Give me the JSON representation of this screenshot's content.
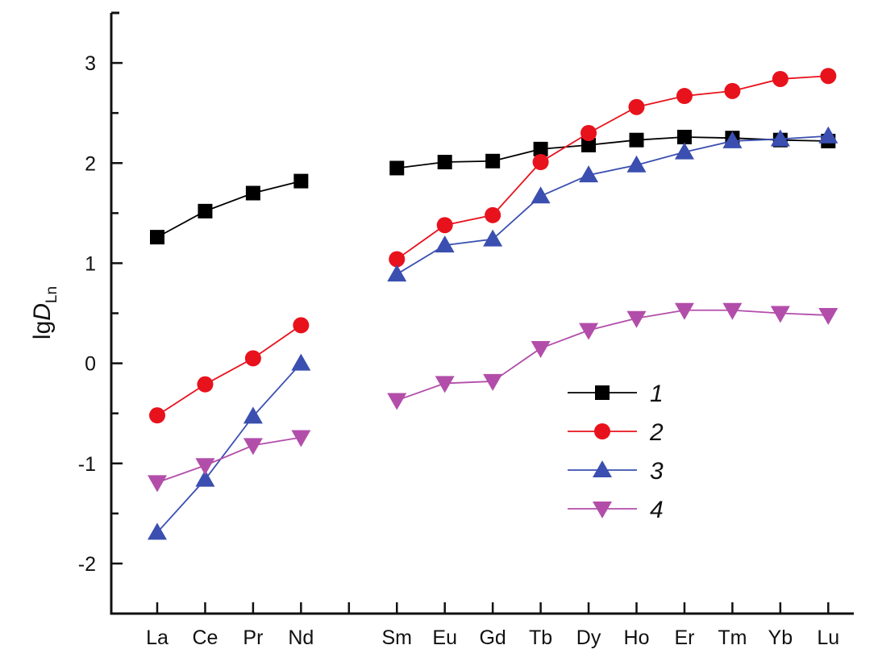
{
  "chart_data": {
    "type": "line",
    "title": "",
    "xlabel": "",
    "ylabel": {
      "prefix": "lg",
      "main": "D",
      "subscript": "Ln"
    },
    "categories": [
      "La",
      "Ce",
      "Pr",
      "Nd",
      "",
      "Sm",
      "Eu",
      "Gd",
      "Tb",
      "Dy",
      "Ho",
      "Er",
      "Tm",
      "Yb",
      "Lu"
    ],
    "ylim": [
      -2.5,
      3.5
    ],
    "yticks": [
      -2,
      -1,
      0,
      1,
      2,
      3
    ],
    "ytick_labels": [
      "-2",
      "-1",
      "0",
      "1",
      "2",
      "3"
    ],
    "y_minor_step": 0.5,
    "grid": false,
    "legend_position": "center-right",
    "series": [
      {
        "name": "1",
        "color": "#000000",
        "marker": "square",
        "values": [
          1.26,
          1.52,
          1.7,
          1.82,
          null,
          1.95,
          2.01,
          2.02,
          2.14,
          2.18,
          2.23,
          2.26,
          2.25,
          2.23,
          2.22
        ]
      },
      {
        "name": "2",
        "color": "#e8121c",
        "marker": "circle",
        "values": [
          -0.52,
          -0.21,
          0.05,
          0.38,
          null,
          1.04,
          1.38,
          1.48,
          2.01,
          2.3,
          2.56,
          2.67,
          2.72,
          2.84,
          2.87
        ]
      },
      {
        "name": "3",
        "color": "#3a4fb0",
        "marker": "triangle-up",
        "values": [
          -1.69,
          -1.16,
          -0.53,
          0.0,
          null,
          0.89,
          1.18,
          1.24,
          1.67,
          1.88,
          1.98,
          2.11,
          2.22,
          2.24,
          2.27
        ]
      },
      {
        "name": "4",
        "color": "#b24eaa",
        "marker": "triangle-down",
        "values": [
          -1.19,
          -1.02,
          -0.82,
          -0.74,
          null,
          -0.37,
          -0.2,
          -0.18,
          0.15,
          0.33,
          0.45,
          0.53,
          0.53,
          0.5,
          0.48
        ]
      }
    ]
  }
}
